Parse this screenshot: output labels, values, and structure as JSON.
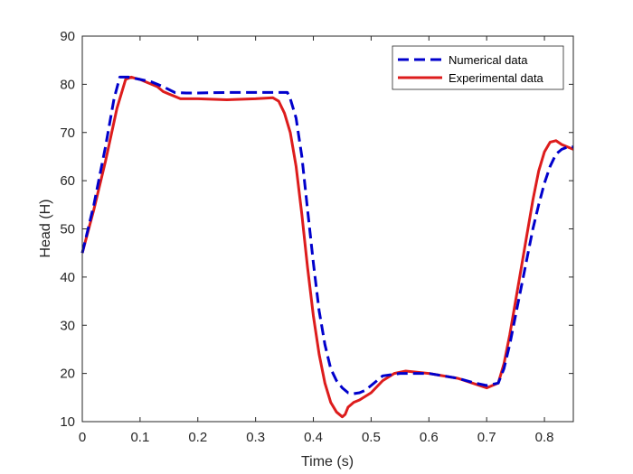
{
  "chart_data": {
    "type": "line",
    "xlabel": "Time (s)",
    "ylabel": "Head (H)",
    "xlim": [
      0,
      0.85
    ],
    "ylim": [
      10,
      90
    ],
    "xticks": [
      0,
      0.1,
      0.2,
      0.3,
      0.4,
      0.5,
      0.6,
      0.7,
      0.8
    ],
    "xtick_labels": [
      "0",
      "0.1",
      "0.2",
      "0.3",
      "0.4",
      "0.5",
      "0.6",
      "0.7",
      "0.8"
    ],
    "yticks": [
      10,
      20,
      30,
      40,
      50,
      60,
      70,
      80,
      90
    ],
    "ytick_labels": [
      "10",
      "20",
      "30",
      "40",
      "50",
      "60",
      "70",
      "80",
      "90"
    ],
    "grid": false,
    "legend_position": "top-right",
    "series": [
      {
        "name": "Numerical data",
        "color": "#0000cc",
        "style": "dashed",
        "x": [
          0,
          0.02,
          0.04,
          0.055,
          0.065,
          0.08,
          0.1,
          0.12,
          0.14,
          0.16,
          0.18,
          0.2,
          0.25,
          0.3,
          0.34,
          0.355,
          0.36,
          0.37,
          0.38,
          0.39,
          0.4,
          0.41,
          0.42,
          0.43,
          0.44,
          0.45,
          0.46,
          0.47,
          0.48,
          0.49,
          0.5,
          0.52,
          0.55,
          0.6,
          0.65,
          0.68,
          0.7,
          0.72,
          0.73,
          0.74,
          0.75,
          0.76,
          0.77,
          0.78,
          0.79,
          0.8,
          0.81,
          0.82,
          0.83,
          0.84,
          0.85
        ],
        "y": [
          45,
          55,
          67,
          77,
          81.5,
          81.5,
          81,
          80.5,
          79.5,
          78.3,
          78.2,
          78.2,
          78.3,
          78.3,
          78.3,
          78.3,
          77,
          73,
          65,
          54,
          43,
          33,
          26,
          21,
          18.5,
          17,
          16,
          15.8,
          16,
          16.5,
          17.5,
          19.5,
          20,
          20,
          19,
          18,
          17.5,
          18,
          21,
          26,
          32,
          38,
          44,
          50,
          55,
          59.5,
          63,
          65.5,
          66.5,
          67,
          67
        ]
      },
      {
        "name": "Experimental data",
        "color": "#dd1c1c",
        "style": "solid",
        "x": [
          0,
          0.02,
          0.04,
          0.06,
          0.075,
          0.085,
          0.09,
          0.1,
          0.11,
          0.12,
          0.13,
          0.14,
          0.15,
          0.16,
          0.17,
          0.2,
          0.25,
          0.3,
          0.33,
          0.34,
          0.35,
          0.36,
          0.37,
          0.38,
          0.39,
          0.4,
          0.41,
          0.42,
          0.43,
          0.44,
          0.45,
          0.455,
          0.46,
          0.47,
          0.48,
          0.5,
          0.52,
          0.54,
          0.56,
          0.6,
          0.65,
          0.7,
          0.72,
          0.73,
          0.74,
          0.75,
          0.76,
          0.77,
          0.78,
          0.79,
          0.8,
          0.81,
          0.82,
          0.83,
          0.84,
          0.85
        ],
        "y": [
          45,
          54,
          64,
          75,
          81,
          81.5,
          81.3,
          81,
          80.5,
          80,
          79.5,
          78.5,
          78,
          77.5,
          77,
          77,
          76.8,
          77,
          77.2,
          76.5,
          74,
          70,
          63,
          53,
          42,
          32,
          24,
          18,
          14,
          12,
          11,
          11.5,
          13,
          14,
          14.5,
          16,
          18.5,
          20,
          20.5,
          20,
          19,
          17,
          18,
          22,
          28,
          35,
          42,
          49,
          56,
          62,
          66,
          68,
          68.3,
          67.5,
          67,
          66.5
        ]
      }
    ]
  }
}
